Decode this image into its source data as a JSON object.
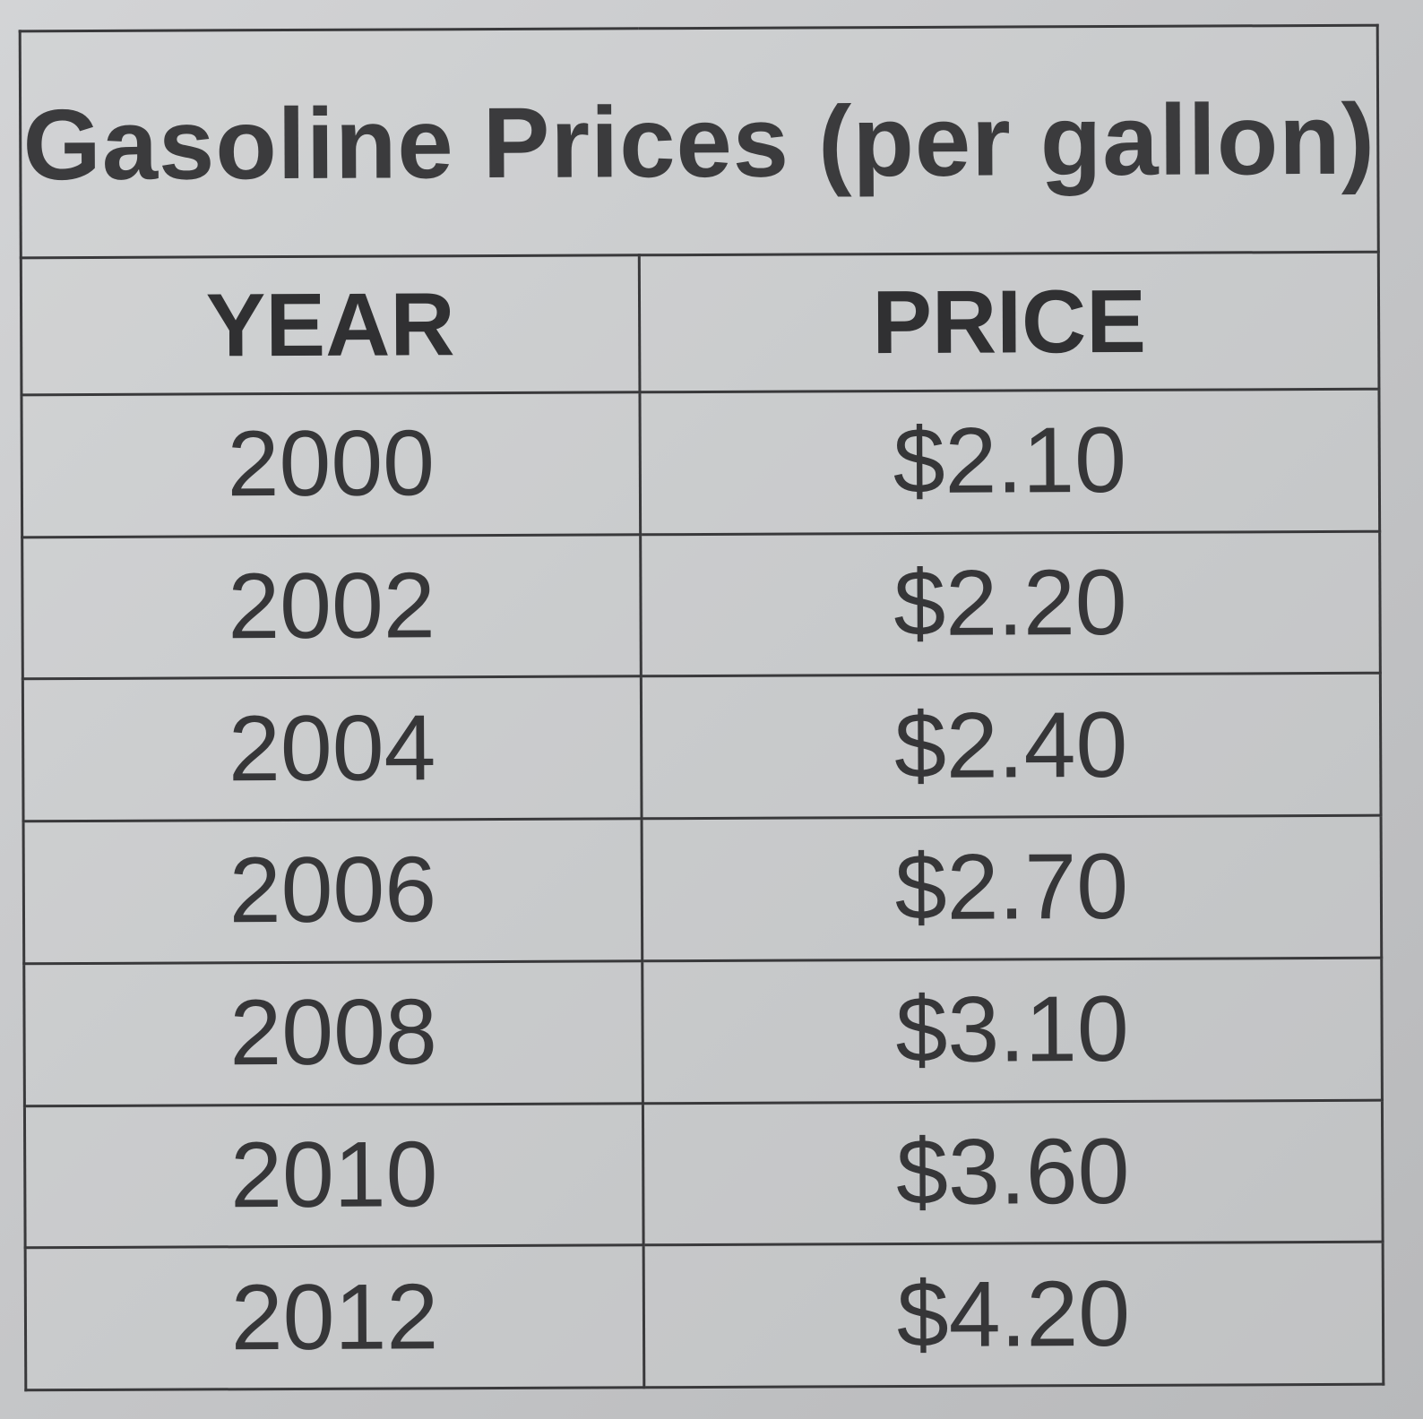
{
  "table": {
    "title": "Gasoline Prices (per gallon)",
    "headers": [
      "YEAR",
      "PRICE"
    ],
    "rows": [
      [
        "2000",
        "$2.10"
      ],
      [
        "2002",
        "$2.20"
      ],
      [
        "2004",
        "$2.40"
      ],
      [
        "2006",
        "$2.70"
      ],
      [
        "2008",
        "$3.10"
      ],
      [
        "2010",
        "$3.60"
      ],
      [
        "2012",
        "$4.20"
      ]
    ]
  },
  "chart_data": {
    "type": "table",
    "title": "Gasoline Prices (per gallon)",
    "columns": [
      "YEAR",
      "PRICE"
    ],
    "x": [
      2000,
      2002,
      2004,
      2006,
      2008,
      2010,
      2012
    ],
    "values": [
      2.1,
      2.2,
      2.4,
      2.7,
      3.1,
      3.6,
      4.2
    ]
  },
  "colors": {
    "paper": "#c9cacc",
    "ink": "#39393b"
  }
}
